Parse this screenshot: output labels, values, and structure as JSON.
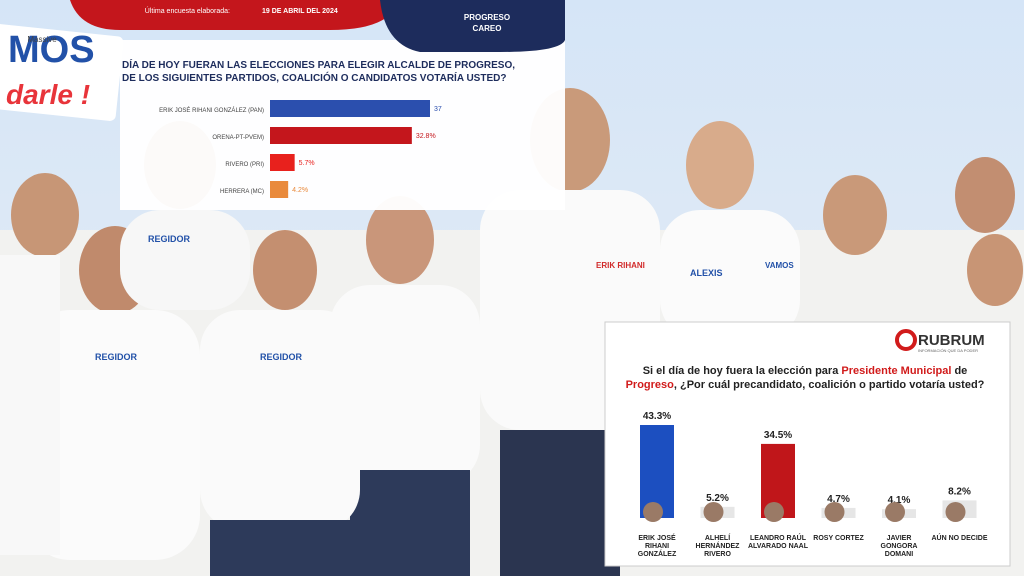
{
  "photo": {
    "texts": [
      "MOS",
      "darle !",
      "REGIDOR",
      "REGIDOR",
      "REGIDOR",
      "ERIK RIHANI",
      "ALEXIS",
      "VAMOS"
    ]
  },
  "chart_data": [
    {
      "type": "hbar",
      "brand": "Massive",
      "header": "Última encuesta elaborada:",
      "date": "19 DE ABRIL DEL 2024",
      "tag": [
        "PROGRESO",
        "CAREO"
      ],
      "title": [
        "DÍA DE HOY FUERAN LAS ELECCIONES PARA ELEGIR ALCALDE DE PROGRESO,",
        "DE LOS SIGUIENTES PARTIDOS, COALICIÓN O CANDIDATOS VOTARÍA USTED?"
      ],
      "categories": [
        "ERIK JOSÉ RIHANI GONZÁLEZ (PAN)",
        "ORENA-PT-PVEM)",
        "RIVERO (PRI)",
        "HERRERA (MC)"
      ],
      "values": [
        37,
        32.8,
        5.7,
        4.2
      ],
      "value_labels": [
        "37",
        "32.8%",
        "5.7%",
        "4.2%"
      ],
      "colors": [
        "#2b4fae",
        "#c4161c",
        "#e8211d",
        "#e98a3c"
      ]
    },
    {
      "type": "bar",
      "brand": "RUBRUM",
      "tagline": "INFORMACIÓN QUE DA PODER",
      "title": [
        "Si el día de hoy fuera la elección para ",
        "Presidente Municipal",
        " de ",
        "Progreso",
        ", ¿Por cuál precandidato, coalición o partido votaría usted?"
      ],
      "categories": [
        "ERIK JOSÉ RIHANI GONZÁLEZ",
        "ALHELÍ HERNÁNDEZ RIVERO",
        "LEANDRO RAÚL ALVARADO NAAL",
        "ROSY CORTEZ",
        "JAVIER GONGORA DOMANI",
        "AÚN NO DECIDE"
      ],
      "values": [
        43.3,
        5.2,
        34.5,
        4.7,
        4.1,
        8.2
      ],
      "value_labels": [
        "43.3%",
        "5.2%",
        "34.5%",
        "4.7%",
        "4.1%",
        "8.2%"
      ],
      "colors": [
        "#1c4fc0",
        "#e6e6e6",
        "#c0161a",
        "#e6e6e6",
        "#e6e6e6",
        "#e6e6e6"
      ]
    }
  ]
}
